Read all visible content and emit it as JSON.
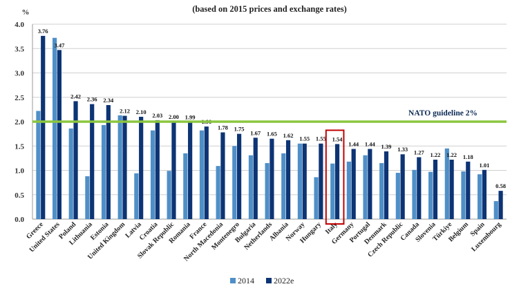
{
  "chart_data": {
    "type": "bar",
    "title": "(based on 2015 prices and exchange rates)",
    "ylabel": "%",
    "ylim": [
      0,
      4.0
    ],
    "yticks": [
      "0.0",
      "0.5",
      "1.0",
      "1.5",
      "2.0",
      "2.5",
      "3.0",
      "3.5",
      "4.0"
    ],
    "grid": true,
    "legend_position": "bottom",
    "categories": [
      "Greece",
      "United States",
      "Poland",
      "Lithuania",
      "Estonia",
      "United Kingdom",
      "Latvia",
      "Croatia",
      "Slovak Republic",
      "Romania",
      "France",
      "North Macedonia",
      "Montenegro",
      "Bulgaria",
      "Netherlands",
      "Albania",
      "Norway",
      "Hungary",
      "Italy",
      "Germany",
      "Portugal",
      "Denmark",
      "Czech Republic",
      "Canada",
      "Slovenia",
      "Türkiye",
      "Belgium",
      "Spain",
      "Luxembourg"
    ],
    "series": [
      {
        "name": "2014",
        "color": "#4f8fc7",
        "values": [
          2.22,
          3.72,
          1.86,
          0.88,
          1.93,
          2.13,
          0.94,
          1.82,
          0.99,
          1.35,
          1.82,
          1.09,
          1.5,
          1.31,
          1.15,
          1.35,
          1.55,
          0.86,
          1.14,
          1.18,
          1.31,
          1.15,
          0.95,
          1.01,
          0.97,
          1.45,
          0.98,
          0.92,
          0.37
        ]
      },
      {
        "name": "2022e",
        "color": "#0d3474",
        "values": [
          3.76,
          3.47,
          2.42,
          2.36,
          2.34,
          2.12,
          2.1,
          2.03,
          2.0,
          1.99,
          1.9,
          1.78,
          1.75,
          1.67,
          1.65,
          1.62,
          1.55,
          1.55,
          1.54,
          1.44,
          1.44,
          1.39,
          1.33,
          1.27,
          1.22,
          1.22,
          1.18,
          1.01,
          0.58
        ],
        "data_labels": [
          "3.76",
          "3.47",
          "2.42",
          "2.36",
          "2.34",
          "2.12",
          "2.10",
          "2.03",
          "2.00",
          "1.99",
          "1.90",
          "1.78",
          "1.75",
          "1.67",
          "1.65",
          "1.62",
          "1.55",
          "1.55",
          "1.54",
          "1.44",
          "1.44",
          "1.39",
          "1.33",
          "1.27",
          "1.22",
          "1.22",
          "1.18",
          "1.01",
          "0.58"
        ]
      }
    ],
    "reference_line": {
      "value": 2.0,
      "label": "NATO guideline 2%",
      "color": "#8cc63f"
    },
    "highlight": {
      "category": "Italy",
      "color": "#c00000"
    }
  }
}
